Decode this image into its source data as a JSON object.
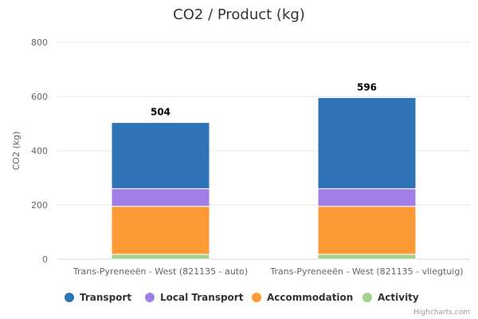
{
  "chart_data": {
    "type": "bar",
    "stacked": true,
    "title": "CO2 / Product (kg)",
    "xlabel": "",
    "ylabel": "CO2 (kg)",
    "ylim": [
      0,
      800
    ],
    "yticks": [
      0,
      200,
      400,
      600,
      800
    ],
    "grid": true,
    "legend_position": "bottom",
    "categories": [
      "Trans-Pyreneeën - West (821135 - auto)",
      "Trans-Pyreneeën - West (821135 - vliegtuig)"
    ],
    "series": [
      {
        "name": "Transport",
        "color": "#2e73b5",
        "values": [
          244,
          336
        ]
      },
      {
        "name": "Local Transport",
        "color": "#a17ee8",
        "values": [
          65,
          65
        ]
      },
      {
        "name": "Accommodation",
        "color": "#fd9a35",
        "values": [
          177,
          177
        ]
      },
      {
        "name": "Activity",
        "color": "#a4d18a",
        "values": [
          18,
          18
        ]
      }
    ],
    "totals": [
      "504",
      "596"
    ],
    "credits": "Highcharts.com"
  }
}
